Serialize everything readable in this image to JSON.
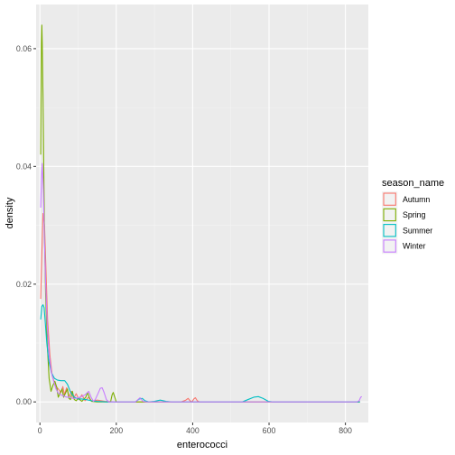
{
  "chart_data": {
    "type": "line",
    "xlabel": "enterococci",
    "ylabel": "density",
    "xlim": [
      -10,
      860
    ],
    "ylim": [
      -0.0035,
      0.0675
    ],
    "x_ticks": [
      0,
      200,
      400,
      600,
      800
    ],
    "x_tick_labels": [
      "0",
      "200",
      "400",
      "600",
      "800"
    ],
    "y_ticks": [
      0,
      0.02,
      0.04,
      0.06
    ],
    "y_tick_labels": [
      "0.00",
      "0.02",
      "0.04",
      "0.06"
    ],
    "grid": true,
    "legend_title": "season_name",
    "legend_position": "right",
    "series": [
      {
        "name": "Autumn",
        "color": "#F8766D",
        "points": [
          [
            2,
            0.0175
          ],
          [
            5,
            0.025
          ],
          [
            8,
            0.032
          ],
          [
            12,
            0.03
          ],
          [
            16,
            0.022
          ],
          [
            20,
            0.014
          ],
          [
            26,
            0.008
          ],
          [
            32,
            0.0045
          ],
          [
            40,
            0.0028
          ],
          [
            48,
            0.0022
          ],
          [
            55,
            0.0016
          ],
          [
            60,
            0.0026
          ],
          [
            64,
            0.0012
          ],
          [
            70,
            0.0024
          ],
          [
            76,
            0.0008
          ],
          [
            82,
            0.0018
          ],
          [
            88,
            0.0006
          ],
          [
            95,
            0.0014
          ],
          [
            102,
            0.0004
          ],
          [
            110,
            0.0012
          ],
          [
            118,
            0.0002
          ],
          [
            128,
            0.0008
          ],
          [
            136,
            0.0001
          ],
          [
            150,
            0.0003
          ],
          [
            170,
            0.0001
          ],
          [
            200,
            0.0
          ],
          [
            300,
            0.0
          ],
          [
            370,
            0.0
          ],
          [
            382,
            0.0003
          ],
          [
            388,
            0.0006
          ],
          [
            393,
            0.0002
          ],
          [
            398,
            0.0
          ],
          [
            403,
            0.0005
          ],
          [
            407,
            0.0007
          ],
          [
            412,
            0.0002
          ],
          [
            418,
            0.0
          ],
          [
            600,
            0.0
          ],
          [
            838,
            0.0
          ]
        ]
      },
      {
        "name": "Spring",
        "color": "#7CAE00",
        "points": [
          [
            2,
            0.042
          ],
          [
            3,
            0.052
          ],
          [
            4,
            0.061
          ],
          [
            5,
            0.064
          ],
          [
            6,
            0.061
          ],
          [
            8,
            0.052
          ],
          [
            10,
            0.04
          ],
          [
            12,
            0.028
          ],
          [
            15,
            0.018
          ],
          [
            19,
            0.01
          ],
          [
            24,
            0.004
          ],
          [
            29,
            0.0018
          ],
          [
            34,
            0.0028
          ],
          [
            39,
            0.0035
          ],
          [
            44,
            0.0025
          ],
          [
            48,
            0.0008
          ],
          [
            53,
            0.0015
          ],
          [
            58,
            0.0022
          ],
          [
            62,
            0.0008
          ],
          [
            67,
            0.0015
          ],
          [
            72,
            0.0022
          ],
          [
            76,
            0.0006
          ],
          [
            80,
            0.0004
          ],
          [
            85,
            0.0018
          ],
          [
            90,
            0.0004
          ],
          [
            95,
            0.0002
          ],
          [
            100,
            0.0006
          ],
          [
            110,
            0.0001
          ],
          [
            120,
            0.0008
          ],
          [
            125,
            0.0016
          ],
          [
            130,
            0.0006
          ],
          [
            135,
            0.0001
          ],
          [
            150,
            0.0
          ],
          [
            185,
            0.0
          ],
          [
            189,
            0.0012
          ],
          [
            192,
            0.0016
          ],
          [
            196,
            0.0008
          ],
          [
            200,
            0.0
          ],
          [
            260,
            0.0
          ],
          [
            500,
            0.0
          ],
          [
            838,
            0.0
          ]
        ]
      },
      {
        "name": "Summer",
        "color": "#00BFC4",
        "points": [
          [
            2,
            0.014
          ],
          [
            5,
            0.0162
          ],
          [
            8,
            0.0165
          ],
          [
            11,
            0.016
          ],
          [
            14,
            0.0135
          ],
          [
            18,
            0.01
          ],
          [
            23,
            0.007
          ],
          [
            30,
            0.005
          ],
          [
            38,
            0.004
          ],
          [
            46,
            0.0037
          ],
          [
            55,
            0.0036
          ],
          [
            65,
            0.0036
          ],
          [
            72,
            0.003
          ],
          [
            80,
            0.0017
          ],
          [
            90,
            0.0008
          ],
          [
            100,
            0.0005
          ],
          [
            110,
            0.0005
          ],
          [
            120,
            0.0004
          ],
          [
            135,
            0.0002
          ],
          [
            150,
            0.0001
          ],
          [
            175,
            0.0
          ],
          [
            250,
            0.0
          ],
          [
            260,
            0.0005
          ],
          [
            268,
            0.0006
          ],
          [
            275,
            0.0002
          ],
          [
            285,
            0.0
          ],
          [
            300,
            0.0001
          ],
          [
            315,
            0.0003
          ],
          [
            330,
            0.0001
          ],
          [
            345,
            0.0
          ],
          [
            500,
            0.0
          ],
          [
            530,
            0.0
          ],
          [
            545,
            0.0004
          ],
          [
            560,
            0.0008
          ],
          [
            572,
            0.0009
          ],
          [
            584,
            0.0006
          ],
          [
            598,
            0.0001
          ],
          [
            610,
            0.0
          ],
          [
            838,
            0.0
          ]
        ]
      },
      {
        "name": "Winter",
        "color": "#C77CFF",
        "points": [
          [
            2,
            0.033
          ],
          [
            4,
            0.038
          ],
          [
            6,
            0.0405
          ],
          [
            9,
            0.036
          ],
          [
            12,
            0.027
          ],
          [
            15,
            0.02
          ],
          [
            19,
            0.013
          ],
          [
            24,
            0.008
          ],
          [
            30,
            0.005
          ],
          [
            36,
            0.0035
          ],
          [
            42,
            0.0022
          ],
          [
            48,
            0.0015
          ],
          [
            55,
            0.0012
          ],
          [
            62,
            0.001
          ],
          [
            70,
            0.0008
          ],
          [
            78,
            0.0008
          ],
          [
            86,
            0.0006
          ],
          [
            95,
            0.0006
          ],
          [
            105,
            0.0008
          ],
          [
            118,
            0.0012
          ],
          [
            128,
            0.0018
          ],
          [
            134,
            0.0008
          ],
          [
            140,
            0.0001
          ],
          [
            145,
            0.0004
          ],
          [
            152,
            0.0014
          ],
          [
            158,
            0.0023
          ],
          [
            163,
            0.0024
          ],
          [
            168,
            0.0016
          ],
          [
            174,
            0.0004
          ],
          [
            180,
            0.0
          ],
          [
            250,
            0.0
          ],
          [
            262,
            0.0007
          ],
          [
            270,
            0.0001
          ],
          [
            280,
            0.0
          ],
          [
            830,
            0.0
          ],
          [
            836,
            0.0002
          ],
          [
            840,
            0.0008
          ],
          [
            843,
            0.0009
          ]
        ]
      }
    ]
  }
}
